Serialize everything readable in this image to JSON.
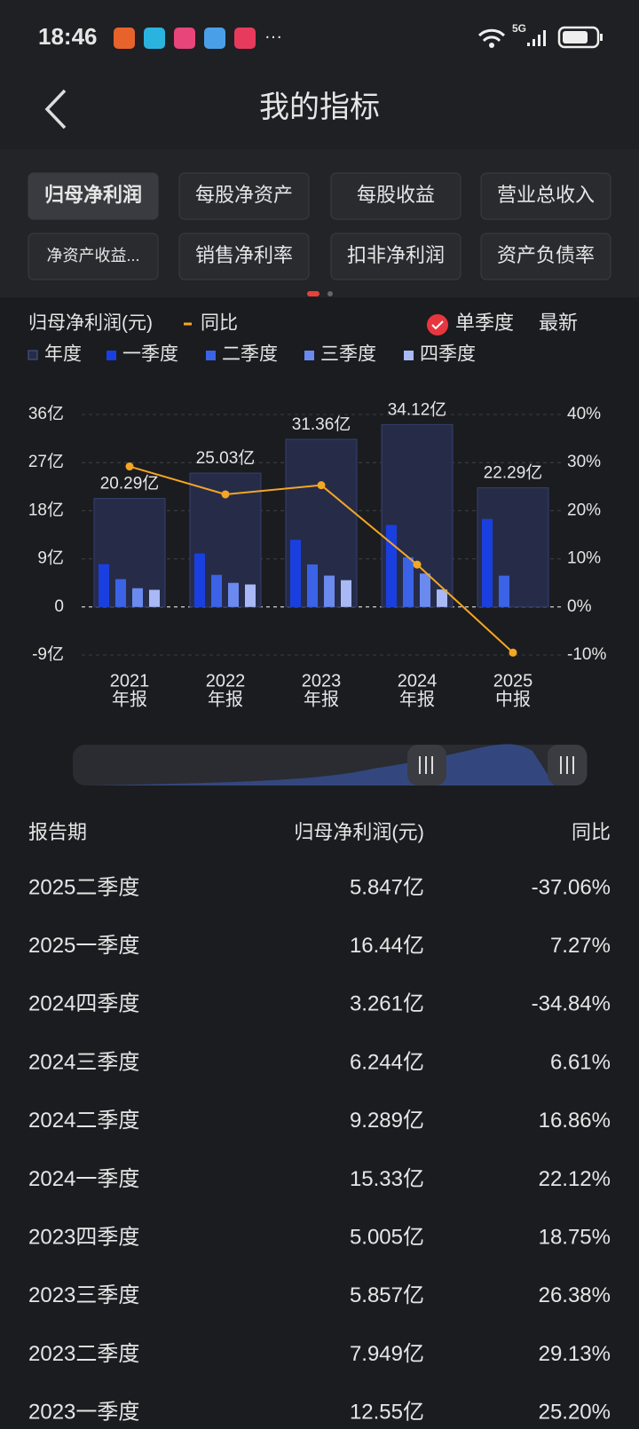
{
  "status_bar": {
    "time": "18:46",
    "network": "5G"
  },
  "header": {
    "title": "我的指标"
  },
  "tabs": {
    "items": [
      "归母净利润",
      "每股净资产",
      "每股收益",
      "营业总收入",
      "净资产收益...",
      "销售净利率",
      "扣非净利润",
      "资产负债率"
    ],
    "active": 0
  },
  "options": {
    "single_quarter": "单季度",
    "latest": "最新"
  },
  "chart_data": {
    "type": "bar",
    "y_label": "归母净利润(元)",
    "categories": [
      [
        "2021",
        "年报"
      ],
      [
        "2022",
        "年报"
      ],
      [
        "2023",
        "年报"
      ],
      [
        "2024",
        "年报"
      ],
      [
        "2025",
        "中报"
      ]
    ],
    "ylim": [
      -9,
      36
    ],
    "yticks": [
      {
        "value": -9,
        "label": "-9亿"
      },
      0,
      {
        "value": 9,
        "label": "9亿"
      },
      {
        "value": 18,
        "label": "18亿"
      },
      {
        "value": 27,
        "label": "27亿"
      },
      {
        "value": 36,
        "label": "36亿"
      }
    ],
    "y2lim": [
      -10,
      40
    ],
    "y2ticks": [
      {
        "value": -10,
        "label": "-10%"
      },
      {
        "value": 0,
        "label": "0%"
      },
      {
        "value": 10,
        "label": "10%"
      },
      {
        "value": 20,
        "label": "20%"
      },
      {
        "value": 30,
        "label": "30%"
      },
      {
        "value": 40,
        "label": "40%"
      }
    ],
    "grid": true,
    "series": [
      {
        "name": "年度",
        "color": "#262c48",
        "values": [
          20.29,
          25.03,
          31.36,
          34.12,
          22.29
        ],
        "value_labels": [
          "20.29亿",
          "25.03亿",
          "31.36亿",
          "34.12亿",
          "22.29亿"
        ]
      },
      {
        "name": "一季度",
        "color": "#1a3fe0",
        "values": [
          8.0,
          10.0,
          12.55,
          15.33,
          16.44
        ]
      },
      {
        "name": "二季度",
        "color": "#3b63e8",
        "values": [
          5.2,
          6.0,
          7.949,
          9.289,
          5.847
        ]
      },
      {
        "name": "三季度",
        "color": "#6b8af0",
        "values": [
          3.5,
          4.5,
          5.857,
          6.244,
          null
        ]
      },
      {
        "name": "四季度",
        "color": "#a9b9f5",
        "values": [
          3.2,
          4.2,
          5.005,
          3.261,
          null
        ]
      },
      {
        "name": "同比",
        "type": "line",
        "axis": "y2",
        "color": "#f5a623",
        "values": [
          29.2,
          23.4,
          25.3,
          8.8,
          -9.5
        ]
      }
    ]
  },
  "table": {
    "headers": [
      "报告期",
      "归母净利润(元)",
      "同比"
    ],
    "rows": [
      [
        "2025二季度",
        "5.847亿",
        "-37.06%"
      ],
      [
        "2025一季度",
        "16.44亿",
        "7.27%"
      ],
      [
        "2024四季度",
        "3.261亿",
        "-34.84%"
      ],
      [
        "2024三季度",
        "6.244亿",
        "6.61%"
      ],
      [
        "2024二季度",
        "9.289亿",
        "16.86%"
      ],
      [
        "2024一季度",
        "15.33亿",
        "22.12%"
      ],
      [
        "2023四季度",
        "5.005亿",
        "18.75%"
      ],
      [
        "2023三季度",
        "5.857亿",
        "26.38%"
      ],
      [
        "2023二季度",
        "7.949亿",
        "29.13%"
      ],
      [
        "2023一季度",
        "12.55亿",
        "25.20%"
      ]
    ]
  }
}
